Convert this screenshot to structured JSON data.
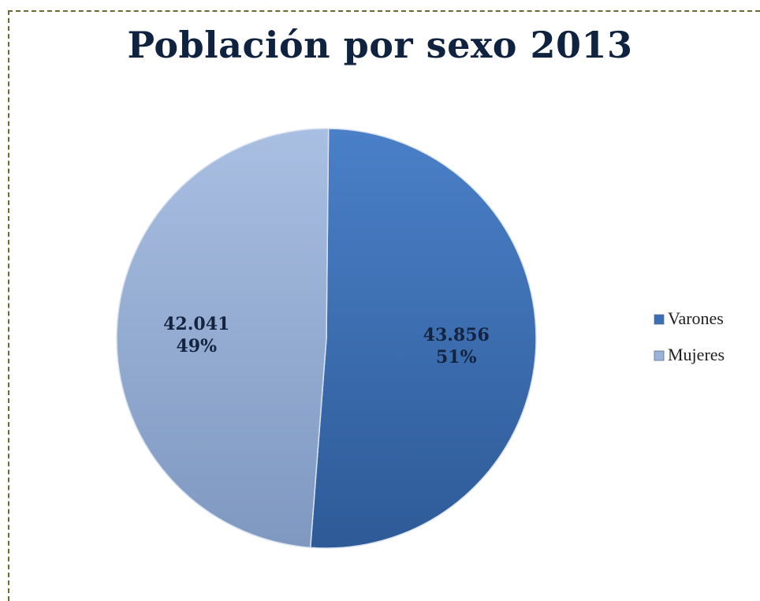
{
  "chart_data": {
    "type": "pie",
    "title": "Población por sexo 2013",
    "categories": [
      "Varones",
      "Mujeres"
    ],
    "values": [
      43856,
      42041
    ],
    "value_labels": [
      "43.856",
      "42.041"
    ],
    "percent_labels": [
      "51%",
      "49%"
    ],
    "colors": [
      "#3a6fb4",
      "#9bb3d8"
    ],
    "legend": {
      "position": "right",
      "entries": [
        "Varones",
        "Mujeres"
      ]
    }
  }
}
